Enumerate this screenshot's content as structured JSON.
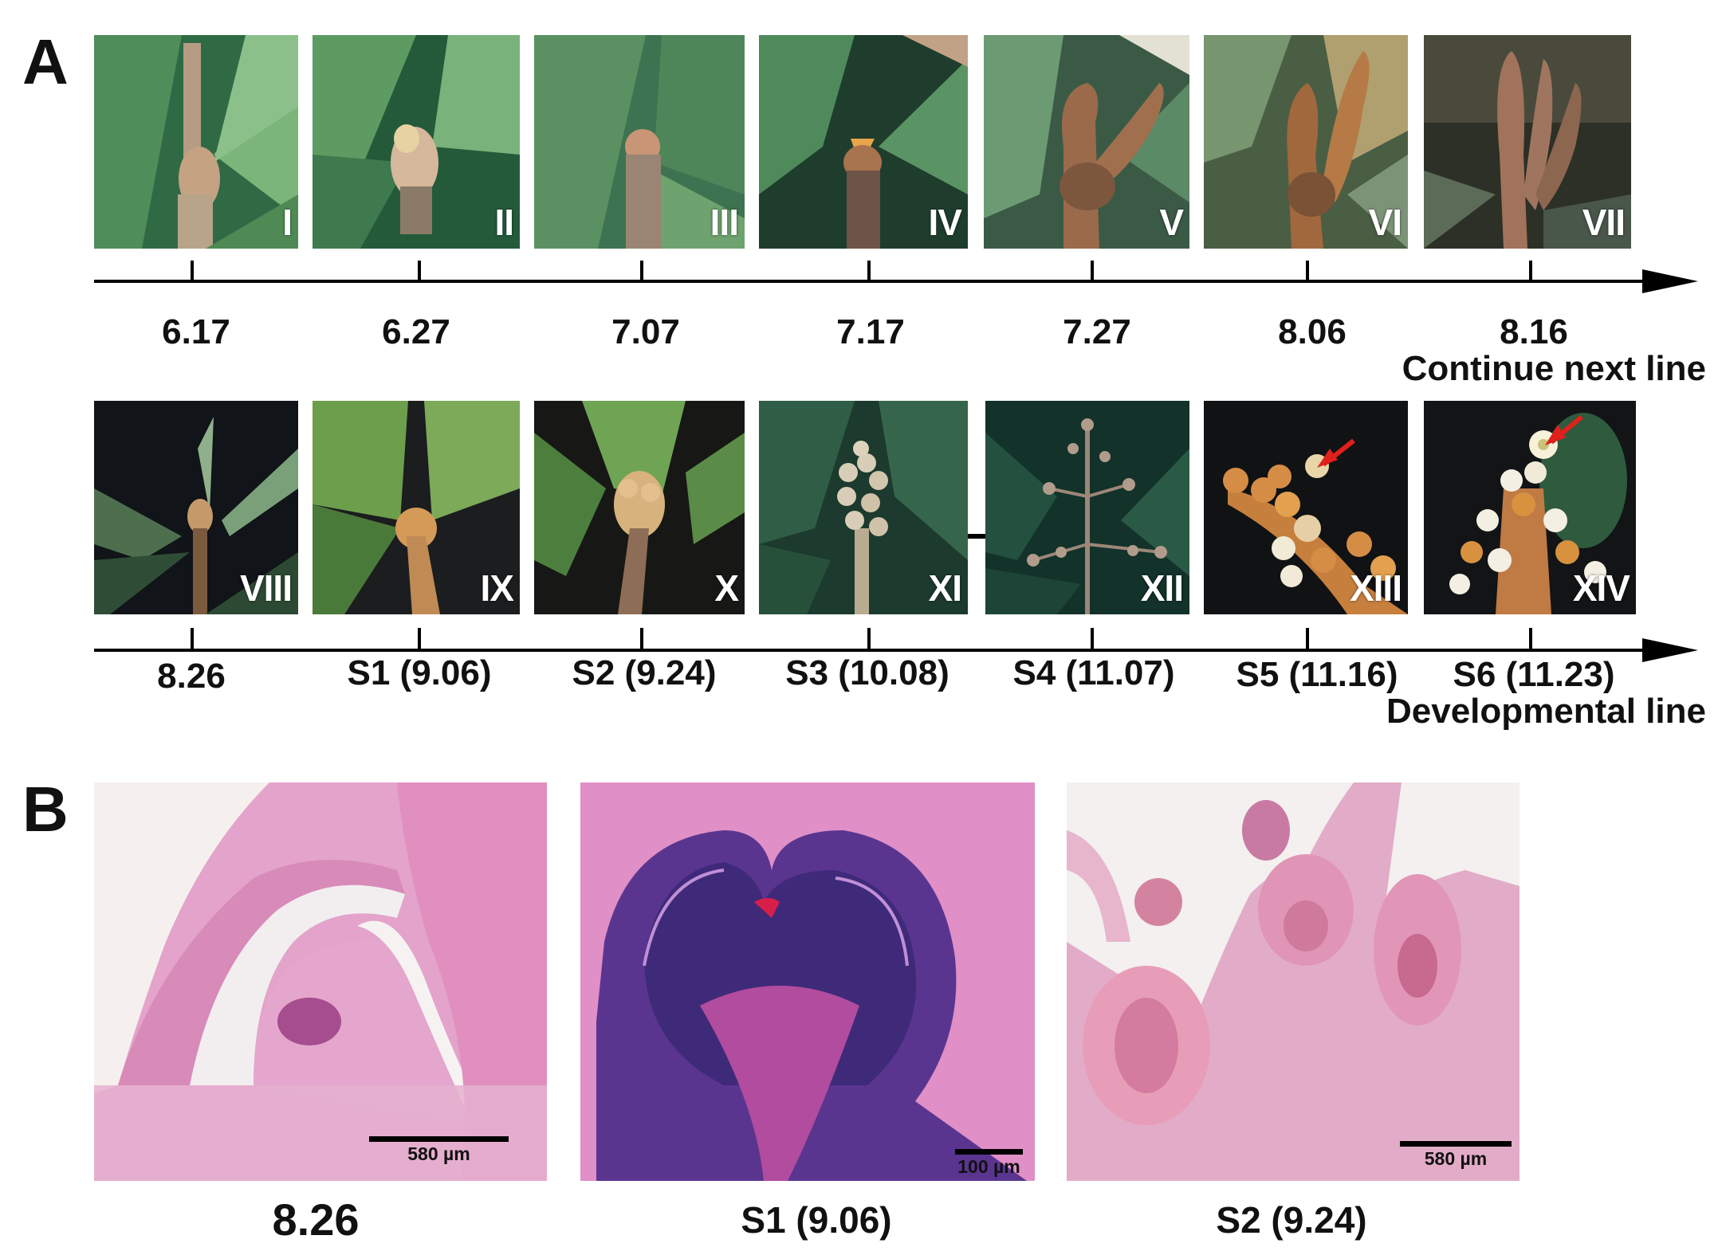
{
  "panels": {
    "a": {
      "letter": "A"
    },
    "b": {
      "letter": "B"
    }
  },
  "row1": {
    "photos": [
      "I",
      "II",
      "III",
      "IV",
      "V",
      "VI",
      "VII"
    ],
    "dates": [
      "6.17",
      "6.27",
      "7.07",
      "7.17",
      "7.27",
      "8.06",
      "8.16"
    ],
    "note": "Continue next line"
  },
  "row2": {
    "photos": [
      "VIII",
      "IX",
      "X",
      "XI",
      "XII",
      "XIII",
      "XIV"
    ],
    "dates": [
      "8.26",
      "S1 (9.06)",
      "S2 (9.24)",
      "S3 (10.08)",
      "S4 (11.07)",
      "S5 (11.16)",
      "S6 (11.23)"
    ],
    "note": "Developmental line"
  },
  "sections": [
    {
      "label": "8.26",
      "scale": "580 µm"
    },
    {
      "label": "S1 (9.06)",
      "scale": "100 µm"
    },
    {
      "label": "S2 (9.24)",
      "scale": "580 µm"
    }
  ],
  "colors": {
    "leaf_dark": "#1f4a33",
    "leaf_light": "#6fae6a",
    "bud_brown": "#b27a4f",
    "studio_black": "#111418",
    "he_pink": "#e6a9cf",
    "he_purple": "#4b2c7d",
    "arrow_red": "#e0201c"
  }
}
